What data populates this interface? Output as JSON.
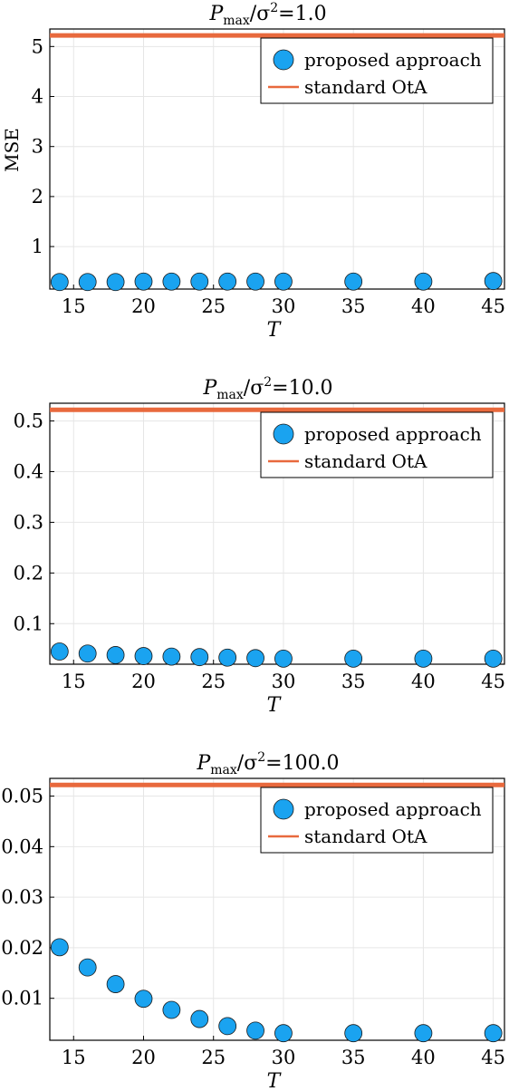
{
  "colors": {
    "marker_fill": "#1aa3f0",
    "marker_stroke": "#1a1a1a",
    "line": "#e8693d",
    "grid": "#e6e6e6"
  },
  "chart_data": [
    {
      "type": "scatter",
      "title": {
        "base": "P",
        "sub": "max",
        "mid": "/σ",
        "sup": "2",
        "tail": "=1.0"
      },
      "xlabel": "T",
      "ylabel": "MSE",
      "xlim": [
        13.3,
        45.8
      ],
      "ylim": [
        0.15,
        5.35
      ],
      "xticks": [
        15,
        20,
        25,
        30,
        35,
        40,
        45
      ],
      "yticks": [
        1,
        2,
        3,
        4,
        5
      ],
      "ytick_labels": [
        "1",
        "2",
        "3",
        "4",
        "5"
      ],
      "grid": true,
      "legend_position": "top-right",
      "series": [
        {
          "name": "proposed approach",
          "kind": "scatter",
          "x": [
            14,
            16,
            18,
            20,
            22,
            24,
            26,
            28,
            30,
            35,
            40,
            45
          ],
          "y": [
            0.29,
            0.29,
            0.29,
            0.3,
            0.3,
            0.3,
            0.3,
            0.3,
            0.3,
            0.3,
            0.3,
            0.31
          ]
        },
        {
          "name": "standard OtA",
          "kind": "hline",
          "y": 5.22
        }
      ]
    },
    {
      "type": "scatter",
      "title": {
        "base": "P",
        "sub": "max",
        "mid": "/σ",
        "sup": "2",
        "tail": "=10.0"
      },
      "xlabel": "T",
      "ylabel": "",
      "xlim": [
        13.3,
        45.8
      ],
      "ylim": [
        0.02,
        0.535
      ],
      "xticks": [
        15,
        20,
        25,
        30,
        35,
        40,
        45
      ],
      "yticks": [
        0.1,
        0.2,
        0.3,
        0.4,
        0.5
      ],
      "ytick_labels": [
        "0.1",
        "0.2",
        "0.3",
        "0.4",
        "0.5"
      ],
      "grid": true,
      "legend_position": "top-right",
      "series": [
        {
          "name": "proposed approach",
          "kind": "scatter",
          "x": [
            14,
            16,
            18,
            20,
            22,
            24,
            26,
            28,
            30,
            35,
            40,
            45
          ],
          "y": [
            0.045,
            0.041,
            0.038,
            0.036,
            0.035,
            0.034,
            0.033,
            0.032,
            0.031,
            0.031,
            0.031,
            0.031
          ]
        },
        {
          "name": "standard OtA",
          "kind": "hline",
          "y": 0.522
        }
      ]
    },
    {
      "type": "scatter",
      "title": {
        "base": "P",
        "sub": "max",
        "mid": "/σ",
        "sup": "2",
        "tail": "=100.0"
      },
      "xlabel": "T",
      "ylabel": "",
      "xlim": [
        13.3,
        45.8
      ],
      "ylim": [
        0.0017,
        0.0535
      ],
      "xticks": [
        15,
        20,
        25,
        30,
        35,
        40,
        45
      ],
      "yticks": [
        0.01,
        0.02,
        0.03,
        0.04,
        0.05
      ],
      "ytick_labels": [
        "0.01",
        "0.02",
        "0.03",
        "0.04",
        "0.05"
      ],
      "grid": true,
      "legend_position": "top-right",
      "series": [
        {
          "name": "proposed approach",
          "kind": "scatter",
          "x": [
            14,
            16,
            18,
            20,
            22,
            24,
            26,
            28,
            30,
            35,
            40,
            45
          ],
          "y": [
            0.0201,
            0.0161,
            0.0128,
            0.0099,
            0.0077,
            0.0059,
            0.0045,
            0.0036,
            0.0031,
            0.0031,
            0.0031,
            0.0031
          ]
        },
        {
          "name": "standard OtA",
          "kind": "hline",
          "y": 0.0522
        }
      ]
    }
  ]
}
